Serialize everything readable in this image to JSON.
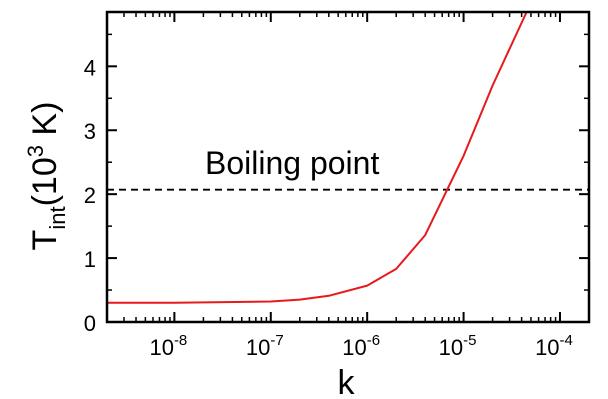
{
  "chart_data": {
    "type": "line",
    "xlabel": "k",
    "ylabel": {
      "base": "T",
      "subscript": "int",
      "units_prefix": "(10",
      "units_exponent": "3",
      "units_suffix": " K)"
    },
    "x_scale": "log",
    "xlim": [
      2e-09,
      0.0002
    ],
    "ylim": [
      0,
      4.85
    ],
    "x_ticks": [
      {
        "value": 1e-08,
        "base": "10",
        "exp": "-8"
      },
      {
        "value": 1e-07,
        "base": "10",
        "exp": "-7"
      },
      {
        "value": 1e-06,
        "base": "10",
        "exp": "-6"
      },
      {
        "value": 1e-05,
        "base": "10",
        "exp": "-5"
      },
      {
        "value": 0.0001,
        "base": "10",
        "exp": "-4"
      }
    ],
    "y_ticks": [
      0,
      1,
      2,
      3,
      4
    ],
    "series": [
      {
        "color": "#e8191c",
        "style": "solid",
        "x": [
          2e-09,
          1e-08,
          1e-07,
          2e-07,
          4e-07,
          1e-06,
          2e-06,
          4e-06,
          1e-05,
          2e-05,
          4.5e-05
        ],
        "y": [
          0.3,
          0.3,
          0.32,
          0.35,
          0.41,
          0.57,
          0.83,
          1.36,
          2.6,
          3.7,
          4.85
        ]
      }
    ],
    "reference_line": {
      "y": 2.07,
      "style": "dashed",
      "color": "#000000",
      "label": "Boiling point"
    },
    "grid": false,
    "legend": "none"
  }
}
